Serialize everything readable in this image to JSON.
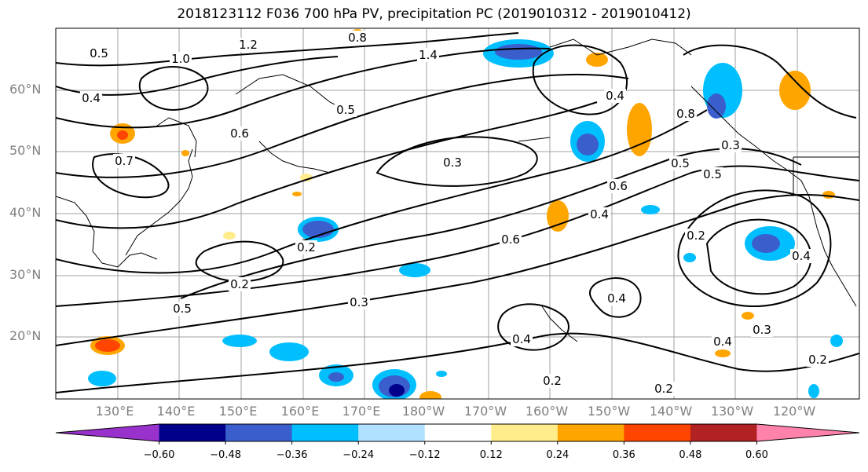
{
  "title": "2018123112 F036 700 hPa PV, precipitation PC (2019010312 - 2019010412)",
  "lat_labels": [
    "60°N",
    "50°N",
    "40°N",
    "30°N",
    "20°N"
  ],
  "lon_labels": [
    "130°E",
    "140°E",
    "150°E",
    "160°E",
    "170°E",
    "180°W",
    "170°W",
    "160°W",
    "150°W",
    "140°W",
    "130°W",
    "120°W"
  ],
  "colorbar": {
    "colors": [
      "#9932cc",
      "#00008b",
      "#3a5fcd",
      "#00bfff",
      "#b0e2ff",
      "#ffffff",
      "#ffec8b",
      "#ffa500",
      "#ff4500",
      "#b22222",
      "#ff82ab"
    ],
    "ticks": [
      "−0.60",
      "−0.48",
      "−0.36",
      "−0.24",
      "−0.12",
      "0.12",
      "0.24",
      "0.36",
      "0.48",
      "0.60"
    ]
  },
  "contour_labels": [
    "0.5",
    "1.2",
    "0.8",
    "1.4",
    "1.0",
    "0.6",
    "0.4",
    "0.7",
    "0.3",
    "0.2",
    "0.5",
    "0.3",
    "0.6",
    "0.4",
    "0.4",
    "0.3",
    "0.2",
    "0.2",
    "0.4",
    "0.6",
    "0.5",
    "0.5",
    "0.4",
    "0.3",
    "0.2",
    "0.4",
    "0.8",
    "0.2",
    "0.2",
    "0.4",
    "0.5"
  ]
}
